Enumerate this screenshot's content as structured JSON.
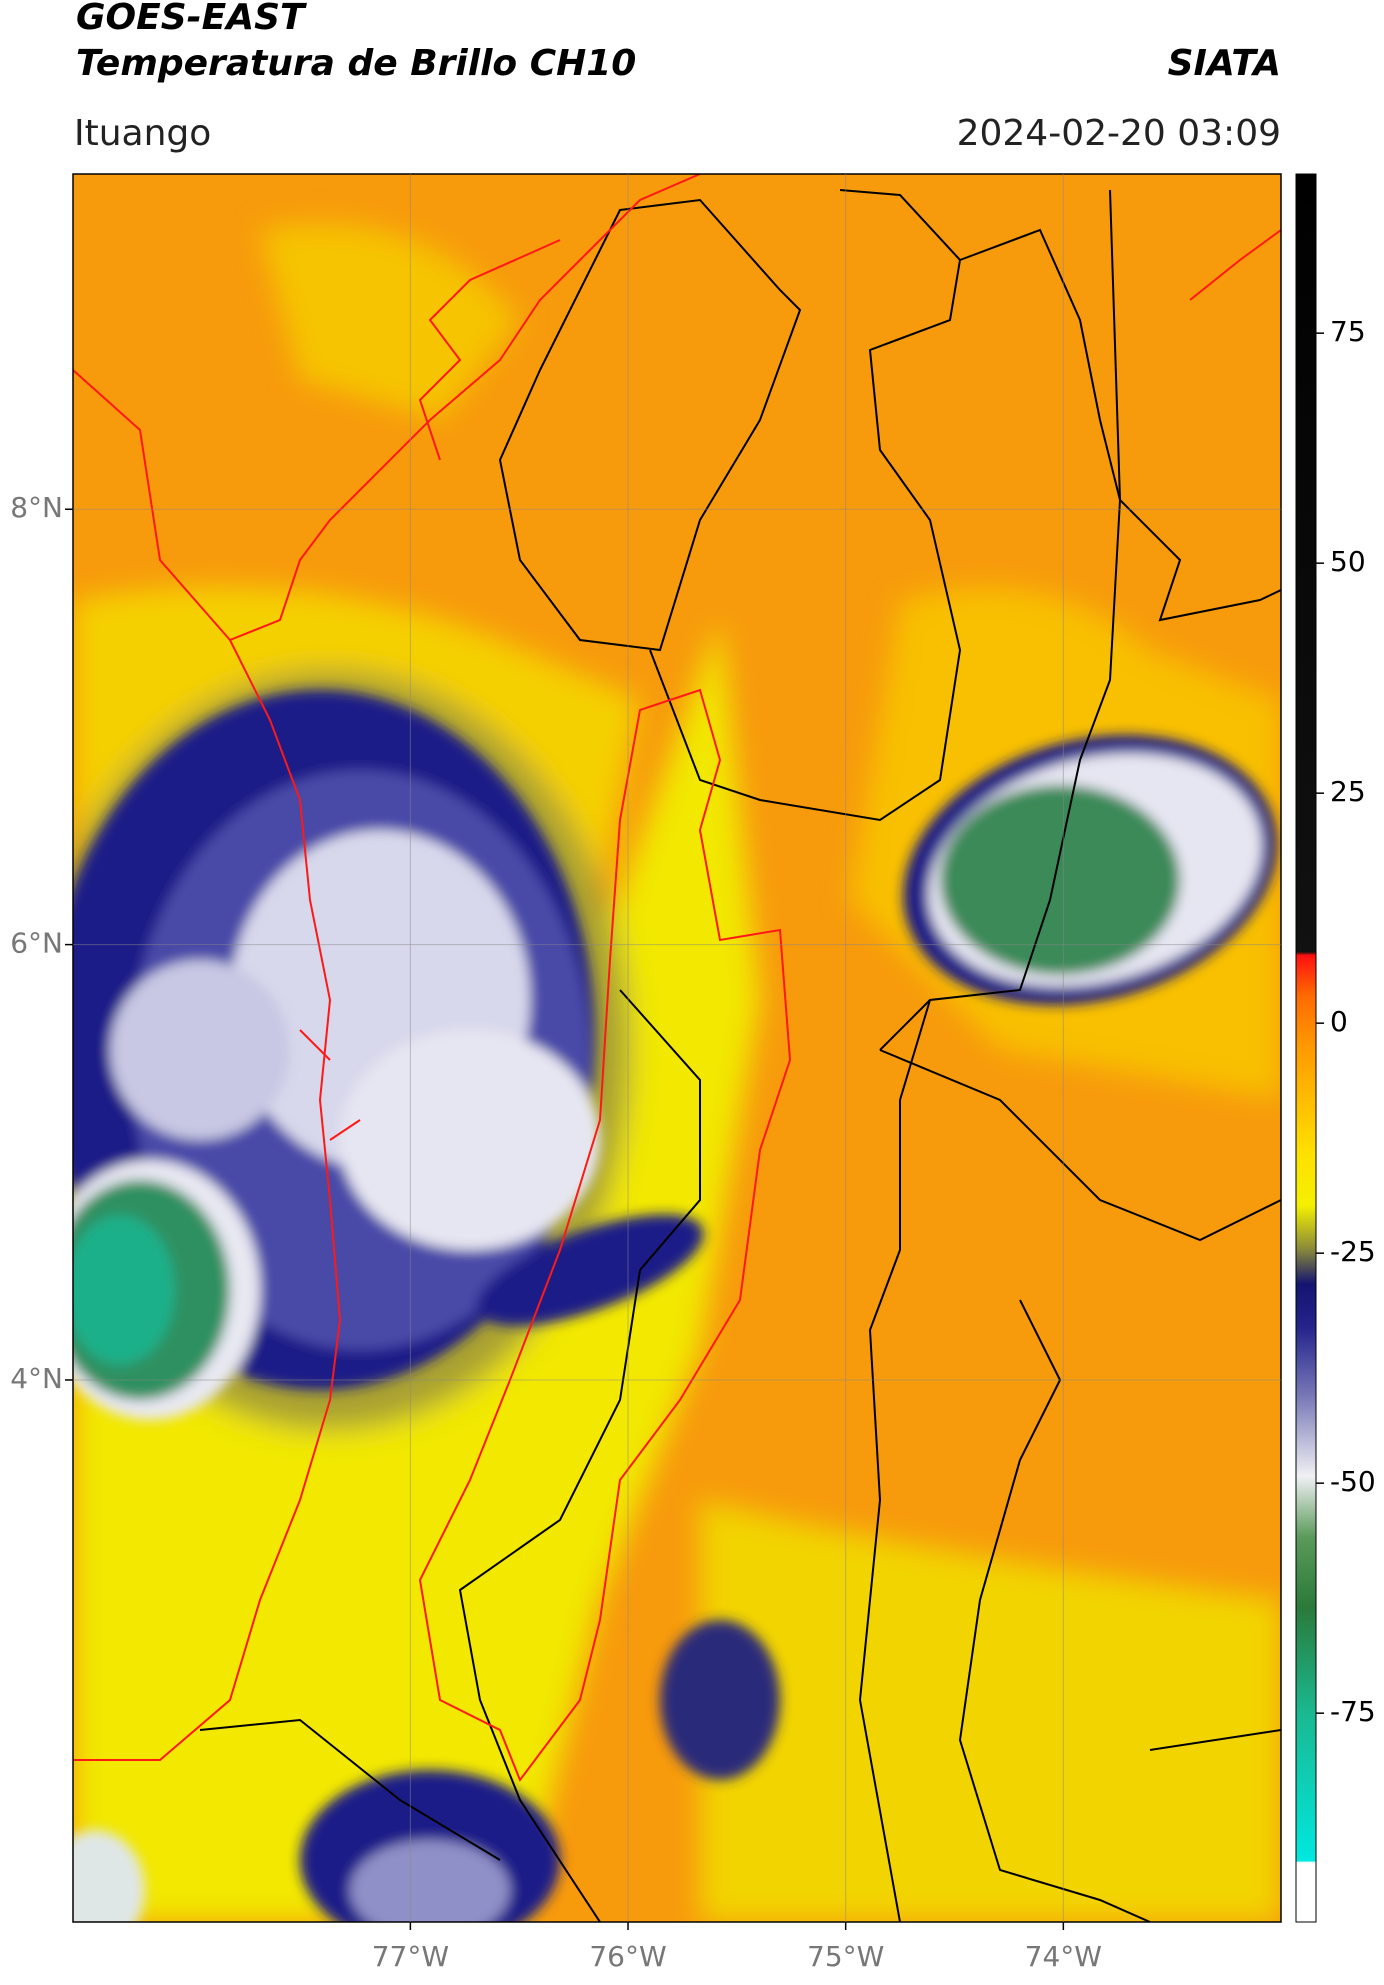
{
  "header": {
    "title": "GOES-EAST",
    "subtitle": "Temperatura de Brillo CH10",
    "brand": "SIATA",
    "location": "Ituango",
    "datetime": "2024-02-20 03:09"
  },
  "map": {
    "latlim": [
      1.51,
      9.54
    ],
    "lonlim": [
      -78.55,
      -73.0
    ],
    "lat_ticks": [
      {
        "value": 8,
        "label": "8°N"
      },
      {
        "value": 6,
        "label": "6°N"
      },
      {
        "value": 4,
        "label": "4°N"
      }
    ],
    "lon_ticks": [
      {
        "value": -77,
        "label": "77°W"
      },
      {
        "value": -76,
        "label": "76°W"
      },
      {
        "value": -75,
        "label": "75°W"
      },
      {
        "value": -74,
        "label": "74°W"
      }
    ],
    "grid": true
  },
  "colorbar": {
    "lim": [
      -97.7,
      92.3
    ],
    "ticks": [
      75,
      50,
      25,
      0,
      -25,
      -50,
      -75
    ]
  }
}
